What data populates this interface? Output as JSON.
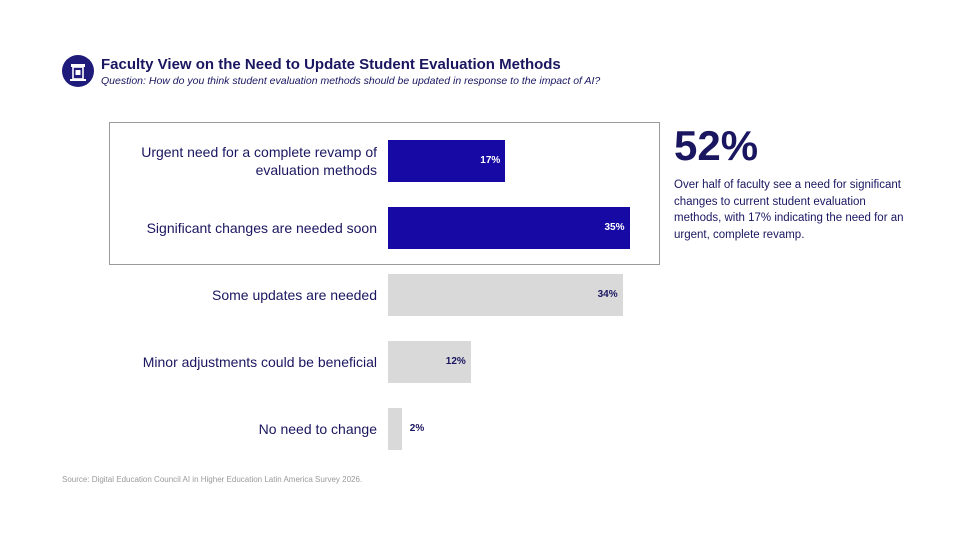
{
  "header": {
    "title": "Faculty View on the Need to Update Student Evaluation Methods",
    "subtitle": "Question: How do you think  student evaluation methods should be updated in response to the impact of AI?",
    "logo_icon": "podium-icon"
  },
  "chart_data": {
    "type": "bar",
    "orientation": "horizontal",
    "categories": [
      "Urgent need for a complete revamp of evaluation methods",
      "Significant changes are needed soon",
      "Some updates are needed",
      "Minor adjustments could be beneficial",
      "No need to change"
    ],
    "values": [
      17,
      35,
      34,
      12,
      2
    ],
    "value_labels": [
      "17%",
      "35%",
      "34%",
      "12%",
      "2%"
    ],
    "highlighted": [
      true,
      true,
      false,
      false,
      false
    ],
    "unit": "%",
    "xlim": [
      0,
      100
    ],
    "colors": {
      "highlight": "#1709a3",
      "default": "#d9d9d9",
      "highlight_text": "#ffffff",
      "default_text": "#1a1660"
    }
  },
  "callout": {
    "stat": "52%",
    "description": "Over half of faculty see a need for significant changes to current student evaluation methods, with 17% indicating the need for an urgent, complete revamp."
  },
  "footer": {
    "source": "Source: Digital Education Council AI in Higher Education Latin America Survey 2026."
  }
}
